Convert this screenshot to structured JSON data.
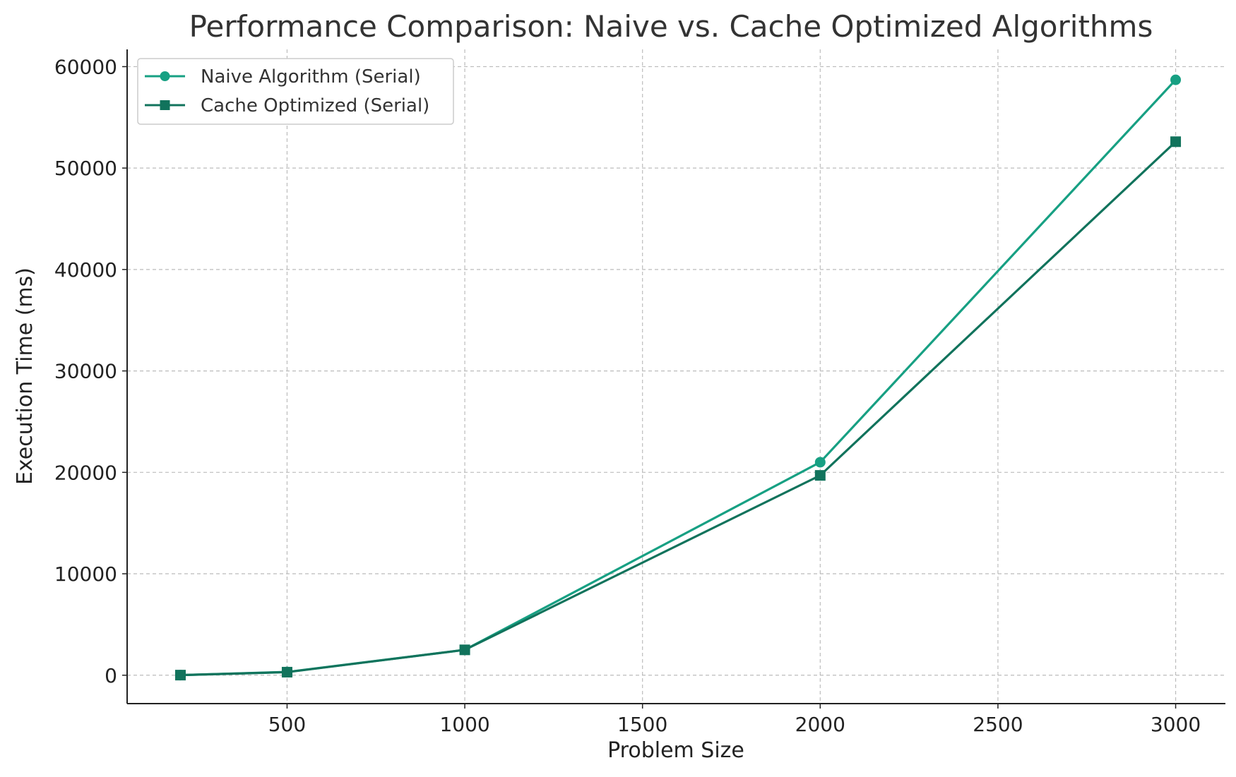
{
  "chart_data": {
    "type": "line",
    "title": "Performance Comparison: Naive vs. Cache Optimized Algorithms",
    "xlabel": "Problem Size",
    "ylabel": "Execution Time (ms)",
    "xlim": [
      50,
      3140
    ],
    "ylim": [
      -2800,
      61700
    ],
    "xticks": [
      500,
      1000,
      1500,
      2000,
      2500,
      3000
    ],
    "yticks": [
      0,
      10000,
      20000,
      30000,
      40000,
      50000,
      60000
    ],
    "grid": true,
    "legend_position": "top-left",
    "x": [
      200,
      500,
      1000,
      2000,
      3000
    ],
    "series": [
      {
        "name": "Naive Algorithm (Serial)",
        "values": [
          10,
          320,
          2500,
          21000,
          58700
        ],
        "color": "#17a083",
        "marker": "circle"
      },
      {
        "name": "Cache Optimized (Serial)",
        "values": [
          10,
          300,
          2500,
          19700,
          52600
        ],
        "color": "#11735c",
        "marker": "square"
      }
    ]
  }
}
